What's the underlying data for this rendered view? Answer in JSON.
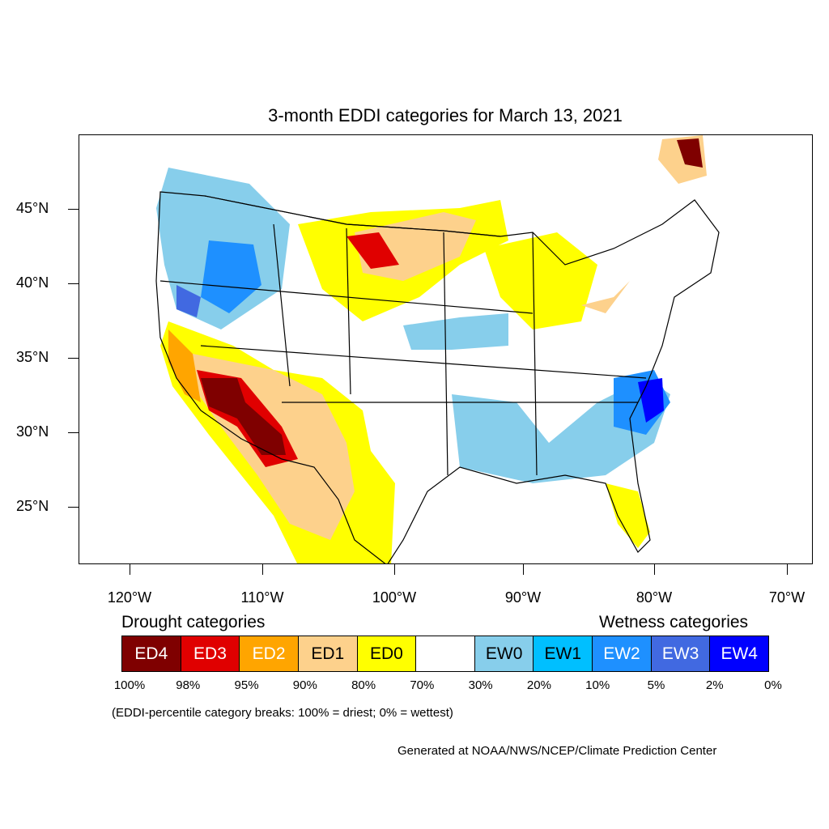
{
  "title": "3-month EDDI categories for March 13, 2021",
  "lat_labels": [
    "45°N",
    "40°N",
    "35°N",
    "30°N",
    "25°N"
  ],
  "lon_labels": [
    "120°W",
    "110°W",
    "100°W",
    "90°W",
    "80°W",
    "70°W"
  ],
  "legend": {
    "drought_heading": "Drought categories",
    "wetness_heading": "Wetness categories",
    "categories": [
      {
        "label": "ED4",
        "color": "#7f0000",
        "text_color": "#ffffff"
      },
      {
        "label": "ED3",
        "color": "#e00000",
        "text_color": "#ffffff"
      },
      {
        "label": "ED2",
        "color": "#ffa500",
        "text_color": "#ffffff"
      },
      {
        "label": "ED1",
        "color": "#fdd18c",
        "text_color": "#000000"
      },
      {
        "label": "ED0",
        "color": "#ffff00",
        "text_color": "#000000"
      },
      {
        "label": "",
        "color": "#ffffff",
        "text_color": "#000000"
      },
      {
        "label": "EW0",
        "color": "#87ceeb",
        "text_color": "#000000"
      },
      {
        "label": "EW1",
        "color": "#00bfff",
        "text_color": "#000000"
      },
      {
        "label": "EW2",
        "color": "#1e90ff",
        "text_color": "#ffffff"
      },
      {
        "label": "EW3",
        "color": "#4169e1",
        "text_color": "#ffffff"
      },
      {
        "label": "EW4",
        "color": "#0000ff",
        "text_color": "#ffffff"
      }
    ],
    "breaks": [
      "100%",
      "98%",
      "95%",
      "90%",
      "80%",
      "70%",
      "30%",
      "20%",
      "10%",
      "5%",
      "2%",
      "0%"
    ]
  },
  "note": "(EDDI-percentile category breaks: 100% = driest; 0% = wettest)",
  "credit": "Generated at NOAA/NWS/NCEP/Climate Prediction Center"
}
